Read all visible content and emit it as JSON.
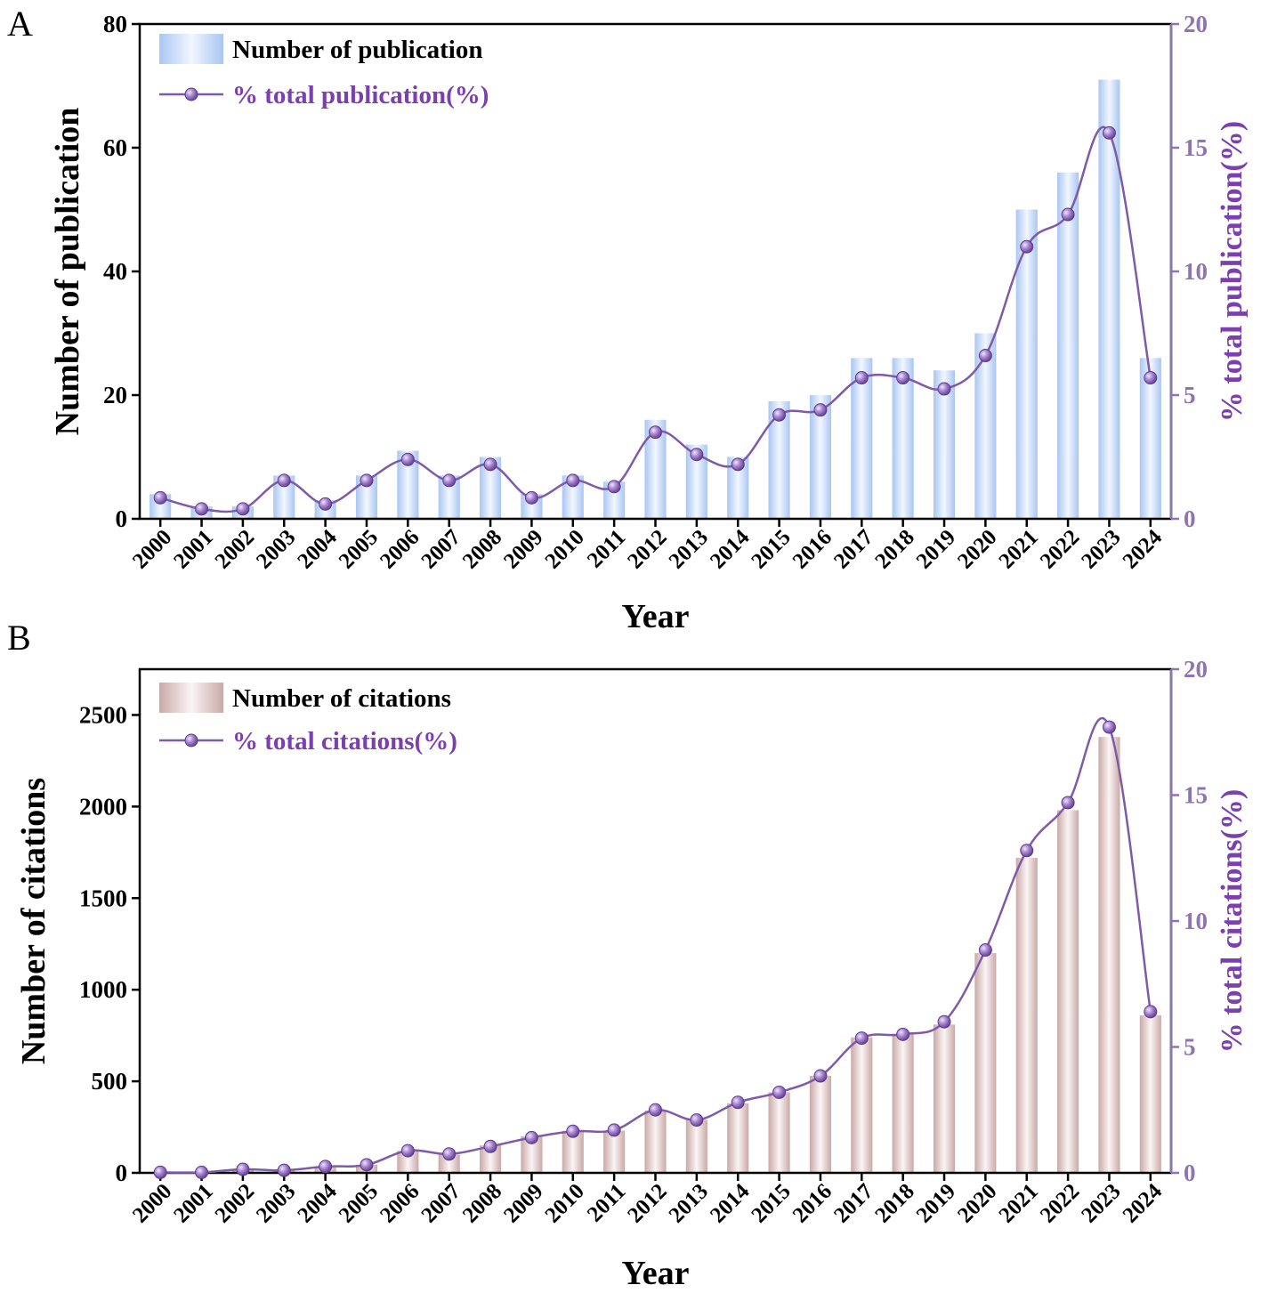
{
  "colors": {
    "bar_blue_edge": "#a9c6f2",
    "bar_blue_center": "#f2f7ff",
    "bar_pink_edge": "#c9a9a7",
    "bar_pink_center": "#fbf5f5",
    "line": "#7e5aa8",
    "marker": "#9a78c8",
    "right_axis": "#8e74b0"
  },
  "chart_data": [
    {
      "panel_label": "A",
      "type": "bar",
      "secondary_type": "line",
      "categories": [
        "2000",
        "2001",
        "2002",
        "2003",
        "2004",
        "2005",
        "2006",
        "2007",
        "2008",
        "2009",
        "2010",
        "2011",
        "2012",
        "2013",
        "2014",
        "2015",
        "2016",
        "2017",
        "2018",
        "2019",
        "2020",
        "2021",
        "2022",
        "2023",
        "2024"
      ],
      "series": [
        {
          "name": "Number of publication",
          "axis": "left",
          "type": "bar",
          "values": [
            4,
            2,
            2,
            7,
            3,
            7,
            11,
            7,
            10,
            4,
            7,
            6,
            16,
            12,
            10,
            19,
            20,
            26,
            26,
            24,
            30,
            50,
            56,
            71,
            26
          ]
        },
        {
          "name": "% total publication(%)",
          "axis": "right",
          "type": "line",
          "values": [
            0.85,
            0.4,
            0.4,
            1.55,
            0.6,
            1.55,
            2.4,
            1.55,
            2.2,
            0.85,
            1.55,
            1.3,
            3.5,
            2.6,
            2.2,
            4.2,
            4.4,
            5.7,
            5.7,
            5.25,
            6.6,
            11.0,
            12.3,
            15.6,
            5.7
          ]
        }
      ],
      "xlabel": "Year",
      "ylabel": "Number of publication",
      "y2label": "% total publication(%)",
      "ylim": [
        0,
        80
      ],
      "yticks": [
        "0",
        "20",
        "40",
        "60",
        "80"
      ],
      "y2lim": [
        0,
        20
      ],
      "y2ticks": [
        "0",
        "5",
        "10",
        "15",
        "20"
      ],
      "legend": "top-left"
    },
    {
      "panel_label": "B",
      "type": "bar",
      "secondary_type": "line",
      "categories": [
        "2000",
        "2001",
        "2002",
        "2003",
        "2004",
        "2005",
        "2006",
        "2007",
        "2008",
        "2009",
        "2010",
        "2011",
        "2012",
        "2013",
        "2014",
        "2015",
        "2016",
        "2017",
        "2018",
        "2019",
        "2020",
        "2021",
        "2022",
        "2023",
        "2024"
      ],
      "series": [
        {
          "name": "Number of citations",
          "axis": "left",
          "type": "bar",
          "values": [
            5,
            5,
            20,
            15,
            30,
            45,
            120,
            100,
            150,
            200,
            230,
            230,
            340,
            290,
            380,
            440,
            530,
            740,
            760,
            810,
            1200,
            1720,
            1980,
            2380,
            860
          ]
        },
        {
          "name": "% total citations(%)",
          "axis": "right",
          "type": "line",
          "values": [
            0.02,
            0.02,
            0.14,
            0.1,
            0.25,
            0.32,
            0.88,
            0.75,
            1.05,
            1.4,
            1.65,
            1.7,
            2.5,
            2.1,
            2.8,
            3.2,
            3.85,
            5.35,
            5.5,
            6.0,
            8.85,
            12.8,
            14.7,
            17.7,
            6.4
          ]
        }
      ],
      "xlabel": "Year",
      "ylabel": "Number of citations",
      "y2label": "% total citations(%)",
      "ylim": [
        0,
        2750
      ],
      "yticks": [
        "0",
        "500",
        "1000",
        "1500",
        "2000",
        "2500"
      ],
      "y2lim": [
        0,
        20
      ],
      "y2ticks": [
        "0",
        "5",
        "10",
        "15",
        "20"
      ],
      "legend": "top-left"
    }
  ]
}
